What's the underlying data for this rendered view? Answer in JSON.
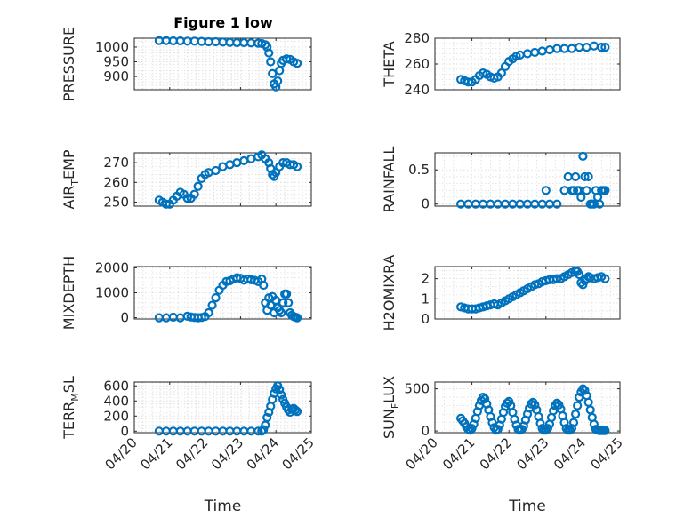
{
  "figure": {
    "title": "Figure 1 low",
    "marker_color": "#0072BD"
  },
  "chart_data": [
    {
      "type": "scatter",
      "title": "Figure 1 low",
      "ylabel": "PRESSURE",
      "xlabel": "",
      "xlim": [
        0,
        5
      ],
      "ylim": [
        855,
        1030
      ],
      "yticks": [
        900,
        950,
        1000
      ],
      "xticks": [
        0,
        1,
        2,
        3,
        4,
        5
      ],
      "xticklabels": [],
      "grid": true,
      "x": [
        0.7,
        0.9,
        1.1,
        1.3,
        1.5,
        1.7,
        1.9,
        2.1,
        2.3,
        2.5,
        2.7,
        2.9,
        3.1,
        3.3,
        3.5,
        3.6,
        3.7,
        3.75,
        3.8,
        3.85,
        3.9,
        3.95,
        4.0,
        4.05,
        4.1,
        4.15,
        4.2,
        4.3,
        4.4,
        4.5,
        4.6
      ],
      "y": [
        1022,
        1022,
        1021,
        1021,
        1020,
        1020,
        1019,
        1018,
        1018,
        1017,
        1016,
        1015,
        1015,
        1014,
        1013,
        1012,
        1008,
        1000,
        980,
        950,
        910,
        875,
        865,
        885,
        920,
        945,
        955,
        960,
        958,
        950,
        945
      ]
    },
    {
      "type": "scatter",
      "title": "",
      "ylabel": "THETA",
      "xlabel": "",
      "xlim": [
        0,
        5
      ],
      "ylim": [
        240,
        280
      ],
      "yticks": [
        240,
        260,
        280
      ],
      "xticks": [
        0,
        1,
        2,
        3,
        4,
        5
      ],
      "xticklabels": [],
      "grid": true,
      "x": [
        0.7,
        0.8,
        0.9,
        1.0,
        1.1,
        1.2,
        1.3,
        1.4,
        1.5,
        1.6,
        1.7,
        1.8,
        1.9,
        2.0,
        2.1,
        2.2,
        2.3,
        2.5,
        2.7,
        2.9,
        3.1,
        3.3,
        3.5,
        3.7,
        3.9,
        4.1,
        4.3,
        4.5,
        4.6
      ],
      "y": [
        248,
        247,
        246,
        246,
        248,
        251,
        253,
        252,
        250,
        249,
        250,
        253,
        258,
        262,
        264,
        266,
        267,
        268,
        269,
        270,
        271,
        272,
        272,
        272,
        273,
        273,
        274,
        273,
        273
      ]
    },
    {
      "type": "scatter",
      "title": "",
      "ylabel": "AIR_TEMP",
      "ylabel_main": "AIR",
      "ylabel_sub": "T",
      "ylabel_rest": "EMP",
      "xlabel": "",
      "xlim": [
        0,
        5
      ],
      "ylim": [
        248,
        275
      ],
      "yticks": [
        250,
        260,
        270
      ],
      "xticks": [
        0,
        1,
        2,
        3,
        4,
        5
      ],
      "xticklabels": [],
      "grid": true,
      "x": [
        0.7,
        0.8,
        0.9,
        1.0,
        1.1,
        1.2,
        1.3,
        1.4,
        1.5,
        1.6,
        1.7,
        1.8,
        1.9,
        2.0,
        2.1,
        2.3,
        2.5,
        2.7,
        2.9,
        3.1,
        3.3,
        3.5,
        3.6,
        3.7,
        3.8,
        3.85,
        3.9,
        3.95,
        4.0,
        4.1,
        4.2,
        4.3,
        4.4,
        4.5,
        4.6
      ],
      "y": [
        251,
        250,
        249,
        249,
        251,
        253,
        255,
        254,
        252,
        252,
        254,
        258,
        262,
        264,
        265,
        266,
        268,
        269,
        270,
        271,
        272,
        273,
        274,
        272,
        270,
        267,
        264,
        263,
        265,
        268,
        270,
        270,
        269,
        269,
        268
      ]
    },
    {
      "type": "scatter",
      "title": "",
      "ylabel": "RAINFALL",
      "xlabel": "",
      "xlim": [
        0,
        5
      ],
      "ylim": [
        -0.03,
        0.75
      ],
      "yticks": [
        0,
        0.5
      ],
      "xticks": [
        0,
        1,
        2,
        3,
        4,
        5
      ],
      "xticklabels": [],
      "grid": true,
      "x": [
        0.7,
        0.9,
        1.1,
        1.3,
        1.5,
        1.7,
        1.9,
        2.1,
        2.3,
        2.5,
        2.7,
        2.9,
        3.0,
        3.1,
        3.3,
        3.5,
        3.6,
        3.7,
        3.75,
        3.8,
        3.85,
        3.9,
        3.95,
        4.0,
        4.05,
        4.1,
        4.15,
        4.2,
        4.25,
        4.3,
        4.35,
        4.4,
        4.45,
        4.5,
        4.55,
        4.6
      ],
      "y": [
        0,
        0,
        0,
        0,
        0,
        0,
        0,
        0,
        0,
        0,
        0,
        0,
        0.2,
        0,
        0,
        0.2,
        0.4,
        0.2,
        0.2,
        0.4,
        0.2,
        0.2,
        0.1,
        0.7,
        0.4,
        0.2,
        0.4,
        0,
        0,
        0,
        0.2,
        0.1,
        0,
        0.2,
        0.2,
        0.2
      ]
    },
    {
      "type": "scatter",
      "title": "",
      "ylabel": "MIXDEPTH",
      "xlabel": "",
      "xlim": [
        0,
        5
      ],
      "ylim": [
        -50,
        2050
      ],
      "yticks": [
        0,
        1000,
        2000
      ],
      "xticks": [
        0,
        1,
        2,
        3,
        4,
        5
      ],
      "xticklabels": [],
      "grid": true,
      "x": [
        0.7,
        0.9,
        1.1,
        1.3,
        1.5,
        1.6,
        1.7,
        1.8,
        1.9,
        2.0,
        2.1,
        2.2,
        2.3,
        2.4,
        2.5,
        2.6,
        2.7,
        2.8,
        2.9,
        3.0,
        3.1,
        3.2,
        3.3,
        3.4,
        3.5,
        3.6,
        3.65,
        3.7,
        3.75,
        3.8,
        3.85,
        3.9,
        3.95,
        4.0,
        4.05,
        4.1,
        4.15,
        4.2,
        4.25,
        4.3,
        4.35,
        4.4,
        4.45,
        4.5,
        4.55,
        4.6
      ],
      "y": [
        0,
        0,
        20,
        0,
        60,
        30,
        10,
        0,
        10,
        50,
        200,
        500,
        800,
        1100,
        1300,
        1450,
        1480,
        1550,
        1600,
        1580,
        1500,
        1550,
        1520,
        1500,
        1450,
        1550,
        1300,
        600,
        300,
        800,
        500,
        850,
        200,
        700,
        400,
        300,
        200,
        600,
        950,
        950,
        600,
        200,
        100,
        50,
        20,
        0
      ]
    },
    {
      "type": "scatter",
      "title": "",
      "ylabel": "H2OMIXRA",
      "xlabel": "",
      "xlim": [
        0,
        5
      ],
      "ylim": [
        0,
        2.6
      ],
      "yticks": [
        0,
        1,
        2
      ],
      "xticks": [
        0,
        1,
        2,
        3,
        4,
        5
      ],
      "xticklabels": [],
      "grid": true,
      "x": [
        0.7,
        0.8,
        0.9,
        1.0,
        1.1,
        1.2,
        1.3,
        1.4,
        1.5,
        1.6,
        1.7,
        1.8,
        1.9,
        2.0,
        2.1,
        2.2,
        2.3,
        2.4,
        2.5,
        2.6,
        2.7,
        2.8,
        2.9,
        3.0,
        3.1,
        3.2,
        3.3,
        3.4,
        3.5,
        3.6,
        3.7,
        3.8,
        3.85,
        3.9,
        3.95,
        4.0,
        4.05,
        4.1,
        4.15,
        4.2,
        4.3,
        4.4,
        4.5,
        4.6
      ],
      "y": [
        0.6,
        0.55,
        0.5,
        0.5,
        0.5,
        0.55,
        0.6,
        0.65,
        0.7,
        0.75,
        0.7,
        0.8,
        0.9,
        1.0,
        1.1,
        1.2,
        1.3,
        1.4,
        1.5,
        1.6,
        1.7,
        1.75,
        1.85,
        1.9,
        1.95,
        1.95,
        2.0,
        2.0,
        2.1,
        2.2,
        2.3,
        2.4,
        2.35,
        2.2,
        1.8,
        1.7,
        1.9,
        2.0,
        2.1,
        2.05,
        2.0,
        2.05,
        2.1,
        2.0
      ]
    },
    {
      "type": "scatter",
      "title": "",
      "ylabel": "TERR_MSL",
      "ylabel_main": "TERR",
      "ylabel_sub": "M",
      "ylabel_rest": "SL",
      "xlabel": "Time",
      "xlim": [
        0,
        5
      ],
      "ylim": [
        -20,
        650
      ],
      "yticks": [
        0,
        200,
        400,
        600
      ],
      "xticks": [
        0,
        1,
        2,
        3,
        4,
        5
      ],
      "xticklabels": [
        "04/20",
        "04/21",
        "04/22",
        "04/23",
        "04/24",
        "04/25"
      ],
      "grid": true,
      "x": [
        0.7,
        0.9,
        1.1,
        1.3,
        1.5,
        1.7,
        1.9,
        2.1,
        2.3,
        2.5,
        2.7,
        2.9,
        3.1,
        3.3,
        3.5,
        3.6,
        3.65,
        3.7,
        3.75,
        3.8,
        3.85,
        3.9,
        3.95,
        4.0,
        4.05,
        4.1,
        4.15,
        4.2,
        4.25,
        4.3,
        4.35,
        4.4,
        4.45,
        4.5,
        4.55,
        4.6
      ],
      "y": [
        0,
        0,
        0,
        0,
        0,
        0,
        0,
        0,
        0,
        0,
        0,
        0,
        0,
        0,
        0,
        0,
        20,
        80,
        180,
        250,
        330,
        420,
        500,
        560,
        600,
        550,
        480,
        420,
        370,
        320,
        280,
        250,
        290,
        300,
        280,
        260
      ]
    },
    {
      "type": "scatter",
      "title": "",
      "ylabel": "SUN_FLUX",
      "ylabel_main": "SUN",
      "ylabel_sub": "F",
      "ylabel_rest": "LUX",
      "xlabel": "Time",
      "xlim": [
        0,
        5
      ],
      "ylim": [
        -20,
        580
      ],
      "yticks": [
        0,
        500
      ],
      "xticks": [
        0,
        1,
        2,
        3,
        4,
        5
      ],
      "xticklabels": [
        "04/20",
        "04/21",
        "04/22",
        "04/23",
        "04/24",
        "04/25"
      ],
      "grid": true,
      "x": [
        0.7,
        0.75,
        0.8,
        0.85,
        0.9,
        0.95,
        1.0,
        1.05,
        1.1,
        1.15,
        1.2,
        1.25,
        1.3,
        1.35,
        1.4,
        1.45,
        1.5,
        1.55,
        1.6,
        1.65,
        1.7,
        1.75,
        1.8,
        1.85,
        1.9,
        1.95,
        2.0,
        2.05,
        2.1,
        2.15,
        2.2,
        2.25,
        2.3,
        2.35,
        2.4,
        2.45,
        2.5,
        2.55,
        2.6,
        2.65,
        2.7,
        2.75,
        2.8,
        2.85,
        2.9,
        2.95,
        3.0,
        3.05,
        3.1,
        3.15,
        3.2,
        3.25,
        3.3,
        3.35,
        3.4,
        3.45,
        3.5,
        3.55,
        3.6,
        3.65,
        3.7,
        3.75,
        3.8,
        3.85,
        3.9,
        3.95,
        4.0,
        4.05,
        4.1,
        4.15,
        4.2,
        4.25,
        4.3,
        4.35,
        4.4,
        4.45,
        4.5,
        4.55,
        4.6
      ],
      "y": [
        150,
        120,
        90,
        50,
        20,
        10,
        30,
        80,
        150,
        230,
        300,
        360,
        400,
        380,
        320,
        250,
        170,
        100,
        40,
        10,
        20,
        70,
        140,
        220,
        290,
        330,
        350,
        300,
        220,
        140,
        70,
        20,
        10,
        20,
        60,
        130,
        200,
        270,
        320,
        340,
        310,
        250,
        170,
        90,
        30,
        10,
        10,
        30,
        80,
        160,
        240,
        300,
        330,
        310,
        260,
        180,
        100,
        30,
        10,
        10,
        30,
        100,
        200,
        300,
        400,
        460,
        500,
        480,
        420,
        340,
        250,
        160,
        80,
        20,
        10,
        5,
        5,
        5,
        5
      ]
    }
  ]
}
